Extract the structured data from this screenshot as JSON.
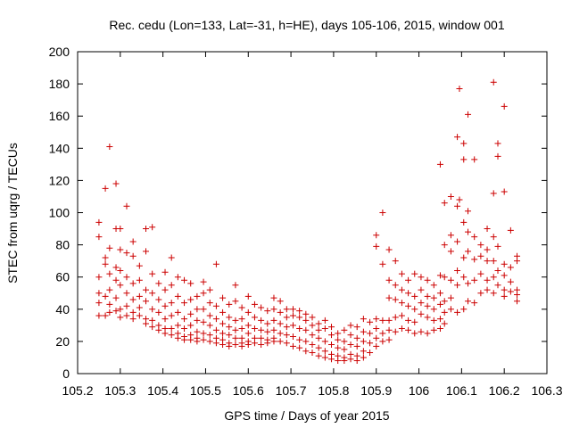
{
  "chart_data": {
    "type": "scatter",
    "title": "Rec. cedu (Lon=133, Lat=-31, h=HE), days 105-106, 2015, window 001",
    "xlabel": "GPS time / Days of year 2015",
    "ylabel": "STEC from uqrg / TECUs",
    "xlim": [
      105.2,
      106.3
    ],
    "ylim": [
      0,
      200
    ],
    "xticks": [
      105.2,
      105.3,
      105.4,
      105.5,
      105.6,
      105.7,
      105.8,
      105.9,
      106,
      106.1,
      106.2,
      106.3
    ],
    "xtick_labels": [
      "105.2",
      "105.3",
      "105.4",
      "105.5",
      "105.6",
      "105.7",
      "105.8",
      "105.9",
      "106",
      "106.1",
      "106.2",
      "106.3"
    ],
    "yticks": [
      0,
      20,
      40,
      60,
      80,
      100,
      120,
      140,
      160,
      180,
      200
    ],
    "ytick_labels": [
      "0",
      "20",
      "40",
      "60",
      "80",
      "100",
      "120",
      "140",
      "160",
      "180",
      "200"
    ],
    "marker": "+",
    "color": "#cc0000",
    "grid": false,
    "points": [
      [
        105.25,
        94
      ],
      [
        105.25,
        85
      ],
      [
        105.25,
        60
      ],
      [
        105.25,
        50
      ],
      [
        105.25,
        44
      ],
      [
        105.25,
        36
      ],
      [
        105.265,
        115
      ],
      [
        105.265,
        72
      ],
      [
        105.265,
        68
      ],
      [
        105.265,
        48
      ],
      [
        105.265,
        36
      ],
      [
        105.275,
        141
      ],
      [
        105.275,
        78
      ],
      [
        105.275,
        62
      ],
      [
        105.275,
        52
      ],
      [
        105.275,
        43
      ],
      [
        105.275,
        38
      ],
      [
        105.29,
        118
      ],
      [
        105.29,
        90
      ],
      [
        105.29,
        66
      ],
      [
        105.29,
        58
      ],
      [
        105.29,
        47
      ],
      [
        105.29,
        39
      ],
      [
        105.3,
        90
      ],
      [
        105.3,
        77
      ],
      [
        105.3,
        64
      ],
      [
        105.3,
        55
      ],
      [
        105.3,
        40
      ],
      [
        105.3,
        35
      ],
      [
        105.315,
        104
      ],
      [
        105.315,
        75
      ],
      [
        105.315,
        60
      ],
      [
        105.315,
        50
      ],
      [
        105.315,
        42
      ],
      [
        105.315,
        36
      ],
      [
        105.33,
        82
      ],
      [
        105.33,
        73
      ],
      [
        105.33,
        56
      ],
      [
        105.33,
        46
      ],
      [
        105.33,
        38
      ],
      [
        105.33,
        34
      ],
      [
        105.345,
        67
      ],
      [
        105.345,
        58
      ],
      [
        105.345,
        48
      ],
      [
        105.345,
        41
      ],
      [
        105.345,
        36
      ],
      [
        105.36,
        90
      ],
      [
        105.36,
        76
      ],
      [
        105.36,
        52
      ],
      [
        105.36,
        45
      ],
      [
        105.36,
        34
      ],
      [
        105.36,
        31
      ],
      [
        105.375,
        91
      ],
      [
        105.375,
        62
      ],
      [
        105.375,
        50
      ],
      [
        105.375,
        40
      ],
      [
        105.375,
        33
      ],
      [
        105.375,
        29
      ],
      [
        105.39,
        56
      ],
      [
        105.39,
        46
      ],
      [
        105.39,
        38
      ],
      [
        105.39,
        30
      ],
      [
        105.39,
        27
      ],
      [
        105.405,
        63
      ],
      [
        105.405,
        52
      ],
      [
        105.405,
        42
      ],
      [
        105.405,
        34
      ],
      [
        105.405,
        28
      ],
      [
        105.405,
        25
      ],
      [
        105.42,
        72
      ],
      [
        105.42,
        55
      ],
      [
        105.42,
        44
      ],
      [
        105.42,
        36
      ],
      [
        105.42,
        28
      ],
      [
        105.42,
        24
      ],
      [
        105.435,
        60
      ],
      [
        105.435,
        48
      ],
      [
        105.435,
        38
      ],
      [
        105.435,
        30
      ],
      [
        105.435,
        25
      ],
      [
        105.435,
        22
      ],
      [
        105.45,
        58
      ],
      [
        105.45,
        44
      ],
      [
        105.45,
        34
      ],
      [
        105.45,
        28
      ],
      [
        105.45,
        23
      ],
      [
        105.45,
        21
      ],
      [
        105.465,
        56
      ],
      [
        105.465,
        46
      ],
      [
        105.465,
        37
      ],
      [
        105.465,
        30
      ],
      [
        105.465,
        24
      ],
      [
        105.465,
        21
      ],
      [
        105.48,
        48
      ],
      [
        105.48,
        40
      ],
      [
        105.48,
        33
      ],
      [
        105.48,
        26
      ],
      [
        105.48,
        22
      ],
      [
        105.48,
        20
      ],
      [
        105.495,
        57
      ],
      [
        105.495,
        50
      ],
      [
        105.495,
        40
      ],
      [
        105.495,
        32
      ],
      [
        105.495,
        25
      ],
      [
        105.495,
        21
      ],
      [
        105.51,
        52
      ],
      [
        105.51,
        44
      ],
      [
        105.51,
        36
      ],
      [
        105.51,
        30
      ],
      [
        105.51,
        24
      ],
      [
        105.51,
        20
      ],
      [
        105.525,
        68
      ],
      [
        105.525,
        42
      ],
      [
        105.525,
        34
      ],
      [
        105.525,
        27
      ],
      [
        105.525,
        22
      ],
      [
        105.525,
        19
      ],
      [
        105.54,
        47
      ],
      [
        105.54,
        38
      ],
      [
        105.54,
        31
      ],
      [
        105.54,
        25
      ],
      [
        105.54,
        21
      ],
      [
        105.54,
        18
      ],
      [
        105.555,
        43
      ],
      [
        105.555,
        35
      ],
      [
        105.555,
        29
      ],
      [
        105.555,
        24
      ],
      [
        105.555,
        19
      ],
      [
        105.555,
        17
      ],
      [
        105.57,
        55
      ],
      [
        105.57,
        45
      ],
      [
        105.57,
        33
      ],
      [
        105.57,
        27
      ],
      [
        105.57,
        22
      ],
      [
        105.57,
        18
      ],
      [
        105.585,
        41
      ],
      [
        105.585,
        34
      ],
      [
        105.585,
        28
      ],
      [
        105.585,
        22
      ],
      [
        105.585,
        19
      ],
      [
        105.585,
        17
      ],
      [
        105.6,
        48
      ],
      [
        105.6,
        38
      ],
      [
        105.6,
        30
      ],
      [
        105.6,
        25
      ],
      [
        105.6,
        20
      ],
      [
        105.6,
        18
      ],
      [
        105.615,
        43
      ],
      [
        105.615,
        35
      ],
      [
        105.615,
        28
      ],
      [
        105.615,
        22
      ],
      [
        105.615,
        19
      ],
      [
        105.63,
        41
      ],
      [
        105.63,
        33
      ],
      [
        105.63,
        27
      ],
      [
        105.63,
        22
      ],
      [
        105.63,
        18
      ],
      [
        105.645,
        39
      ],
      [
        105.645,
        31
      ],
      [
        105.645,
        26
      ],
      [
        105.645,
        21
      ],
      [
        105.645,
        19
      ],
      [
        105.66,
        47
      ],
      [
        105.66,
        40
      ],
      [
        105.66,
        33
      ],
      [
        105.66,
        27
      ],
      [
        105.66,
        22
      ],
      [
        105.66,
        20
      ],
      [
        105.675,
        45
      ],
      [
        105.675,
        38
      ],
      [
        105.675,
        31
      ],
      [
        105.675,
        25
      ],
      [
        105.675,
        20
      ],
      [
        105.69,
        40
      ],
      [
        105.69,
        35
      ],
      [
        105.69,
        29
      ],
      [
        105.69,
        24
      ],
      [
        105.69,
        19
      ],
      [
        105.705,
        40
      ],
      [
        105.705,
        36
      ],
      [
        105.705,
        30
      ],
      [
        105.705,
        23
      ],
      [
        105.705,
        17
      ],
      [
        105.72,
        39
      ],
      [
        105.72,
        35
      ],
      [
        105.72,
        28
      ],
      [
        105.72,
        21
      ],
      [
        105.72,
        16
      ],
      [
        105.735,
        37
      ],
      [
        105.735,
        33
      ],
      [
        105.735,
        27
      ],
      [
        105.735,
        20
      ],
      [
        105.735,
        14
      ],
      [
        105.75,
        35
      ],
      [
        105.75,
        30
      ],
      [
        105.75,
        24
      ],
      [
        105.75,
        18
      ],
      [
        105.75,
        13
      ],
      [
        105.765,
        31
      ],
      [
        105.765,
        27
      ],
      [
        105.765,
        22
      ],
      [
        105.765,
        16
      ],
      [
        105.765,
        11
      ],
      [
        105.78,
        33
      ],
      [
        105.78,
        28
      ],
      [
        105.78,
        20
      ],
      [
        105.78,
        14
      ],
      [
        105.78,
        10
      ],
      [
        105.795,
        29
      ],
      [
        105.795,
        24
      ],
      [
        105.795,
        18
      ],
      [
        105.795,
        12
      ],
      [
        105.795,
        9
      ],
      [
        105.81,
        25
      ],
      [
        105.81,
        21
      ],
      [
        105.81,
        16
      ],
      [
        105.81,
        11
      ],
      [
        105.81,
        8
      ],
      [
        105.825,
        27
      ],
      [
        105.825,
        20
      ],
      [
        105.825,
        15
      ],
      [
        105.825,
        10
      ],
      [
        105.825,
        8
      ],
      [
        105.84,
        30
      ],
      [
        105.84,
        24
      ],
      [
        105.84,
        18
      ],
      [
        105.84,
        12
      ],
      [
        105.84,
        9
      ],
      [
        105.855,
        29
      ],
      [
        105.855,
        22
      ],
      [
        105.855,
        17
      ],
      [
        105.855,
        11
      ],
      [
        105.855,
        8
      ],
      [
        105.87,
        34
      ],
      [
        105.87,
        26
      ],
      [
        105.87,
        20
      ],
      [
        105.87,
        14
      ],
      [
        105.87,
        10
      ],
      [
        105.885,
        32
      ],
      [
        105.885,
        25
      ],
      [
        105.885,
        19
      ],
      [
        105.885,
        13
      ],
      [
        105.9,
        86
      ],
      [
        105.9,
        79
      ],
      [
        105.9,
        34
      ],
      [
        105.9,
        28
      ],
      [
        105.9,
        22
      ],
      [
        105.9,
        17
      ],
      [
        105.915,
        100
      ],
      [
        105.915,
        68
      ],
      [
        105.915,
        33
      ],
      [
        105.915,
        25
      ],
      [
        105.915,
        20
      ],
      [
        105.93,
        77
      ],
      [
        105.93,
        58
      ],
      [
        105.93,
        47
      ],
      [
        105.93,
        33
      ],
      [
        105.93,
        27
      ],
      [
        105.93,
        21
      ],
      [
        105.945,
        70
      ],
      [
        105.945,
        55
      ],
      [
        105.945,
        46
      ],
      [
        105.945,
        35
      ],
      [
        105.945,
        26
      ],
      [
        105.96,
        62
      ],
      [
        105.96,
        52
      ],
      [
        105.96,
        44
      ],
      [
        105.96,
        36
      ],
      [
        105.96,
        28
      ],
      [
        105.975,
        58
      ],
      [
        105.975,
        50
      ],
      [
        105.975,
        42
      ],
      [
        105.975,
        33
      ],
      [
        105.975,
        27
      ],
      [
        105.99,
        62
      ],
      [
        105.99,
        48
      ],
      [
        105.99,
        40
      ],
      [
        105.99,
        32
      ],
      [
        105.99,
        25
      ],
      [
        106.005,
        60
      ],
      [
        106.005,
        52
      ],
      [
        106.005,
        44
      ],
      [
        106.005,
        37
      ],
      [
        106.005,
        26
      ],
      [
        106.02,
        58
      ],
      [
        106.02,
        48
      ],
      [
        106.02,
        42
      ],
      [
        106.02,
        35
      ],
      [
        106.02,
        25
      ],
      [
        106.035,
        55
      ],
      [
        106.035,
        47
      ],
      [
        106.035,
        40
      ],
      [
        106.035,
        33
      ],
      [
        106.035,
        27
      ],
      [
        106.05,
        130
      ],
      [
        106.05,
        61
      ],
      [
        106.05,
        50
      ],
      [
        106.05,
        43
      ],
      [
        106.05,
        34
      ],
      [
        106.05,
        28
      ],
      [
        106.06,
        106
      ],
      [
        106.06,
        80
      ],
      [
        106.06,
        60
      ],
      [
        106.06,
        45
      ],
      [
        106.06,
        38
      ],
      [
        106.06,
        31
      ],
      [
        106.075,
        110
      ],
      [
        106.075,
        86
      ],
      [
        106.075,
        76
      ],
      [
        106.075,
        58
      ],
      [
        106.075,
        47
      ],
      [
        106.075,
        40
      ],
      [
        106.09,
        147
      ],
      [
        106.09,
        104
      ],
      [
        106.09,
        82
      ],
      [
        106.09,
        64
      ],
      [
        106.09,
        55
      ],
      [
        106.09,
        38
      ],
      [
        106.095,
        177
      ],
      [
        106.095,
        108
      ],
      [
        106.105,
        143
      ],
      [
        106.105,
        133
      ],
      [
        106.105,
        94
      ],
      [
        106.105,
        72
      ],
      [
        106.105,
        60
      ],
      [
        106.105,
        40
      ],
      [
        106.115,
        161
      ],
      [
        106.115,
        101
      ],
      [
        106.115,
        88
      ],
      [
        106.115,
        76
      ],
      [
        106.115,
        56
      ],
      [
        106.115,
        45
      ],
      [
        106.13,
        133
      ],
      [
        106.13,
        85
      ],
      [
        106.13,
        71
      ],
      [
        106.13,
        58
      ],
      [
        106.13,
        44
      ],
      [
        106.145,
        80
      ],
      [
        106.145,
        73
      ],
      [
        106.145,
        62
      ],
      [
        106.145,
        50
      ],
      [
        106.16,
        90
      ],
      [
        106.16,
        77
      ],
      [
        106.16,
        70
      ],
      [
        106.16,
        58
      ],
      [
        106.16,
        52
      ],
      [
        106.175,
        181
      ],
      [
        106.175,
        112
      ],
      [
        106.175,
        85
      ],
      [
        106.175,
        70
      ],
      [
        106.175,
        60
      ],
      [
        106.175,
        50
      ],
      [
        106.185,
        143
      ],
      [
        106.185,
        135
      ],
      [
        106.185,
        79
      ],
      [
        106.185,
        64
      ],
      [
        106.185,
        55
      ],
      [
        106.2,
        166
      ],
      [
        106.2,
        113
      ],
      [
        106.2,
        68
      ],
      [
        106.2,
        61
      ],
      [
        106.2,
        52
      ],
      [
        106.2,
        48
      ],
      [
        106.215,
        89
      ],
      [
        106.215,
        66
      ],
      [
        106.215,
        57
      ],
      [
        106.215,
        51
      ],
      [
        106.23,
        73
      ],
      [
        106.23,
        70
      ],
      [
        106.23,
        52
      ],
      [
        106.23,
        49
      ],
      [
        106.23,
        45
      ]
    ]
  }
}
